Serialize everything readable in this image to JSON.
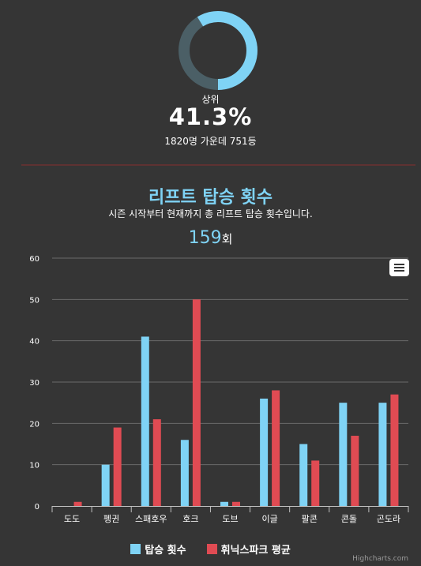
{
  "rank": {
    "label": "상위",
    "percent_text": "41.3%",
    "percent": 41.3,
    "detail": "1820명 가운데 751등"
  },
  "chart_title": "리프트 탑승 횟수",
  "chart_subtitle": "시즌 시작부터 현재까지 총 리프트 탑승 횟수입니다.",
  "total": {
    "value": "159",
    "unit": "회"
  },
  "colors": {
    "ride": "#7fd3f5",
    "avg": "#e04b53",
    "donut_track": "#4b5f66",
    "grid": "#6a6a6a"
  },
  "menu_icon": "hamburger-menu-icon",
  "credits": "Highcharts.com",
  "chart_data": {
    "type": "bar",
    "categories": [
      "도도",
      "펭귄",
      "스패호우",
      "호크",
      "도브",
      "이글",
      "팔콘",
      "콘돌",
      "곤도라"
    ],
    "series": [
      {
        "name": "탑승 횟수",
        "values": [
          0,
          10,
          41,
          16,
          1,
          26,
          15,
          25,
          25
        ]
      },
      {
        "name": "휘닉스파크 평균",
        "values": [
          1,
          19,
          21,
          50,
          1,
          28,
          11,
          17,
          27
        ]
      }
    ],
    "ylim": [
      0,
      60
    ],
    "yticks": [
      0,
      10,
      20,
      30,
      40,
      50,
      60
    ],
    "grid": true,
    "legend": "bottom"
  }
}
